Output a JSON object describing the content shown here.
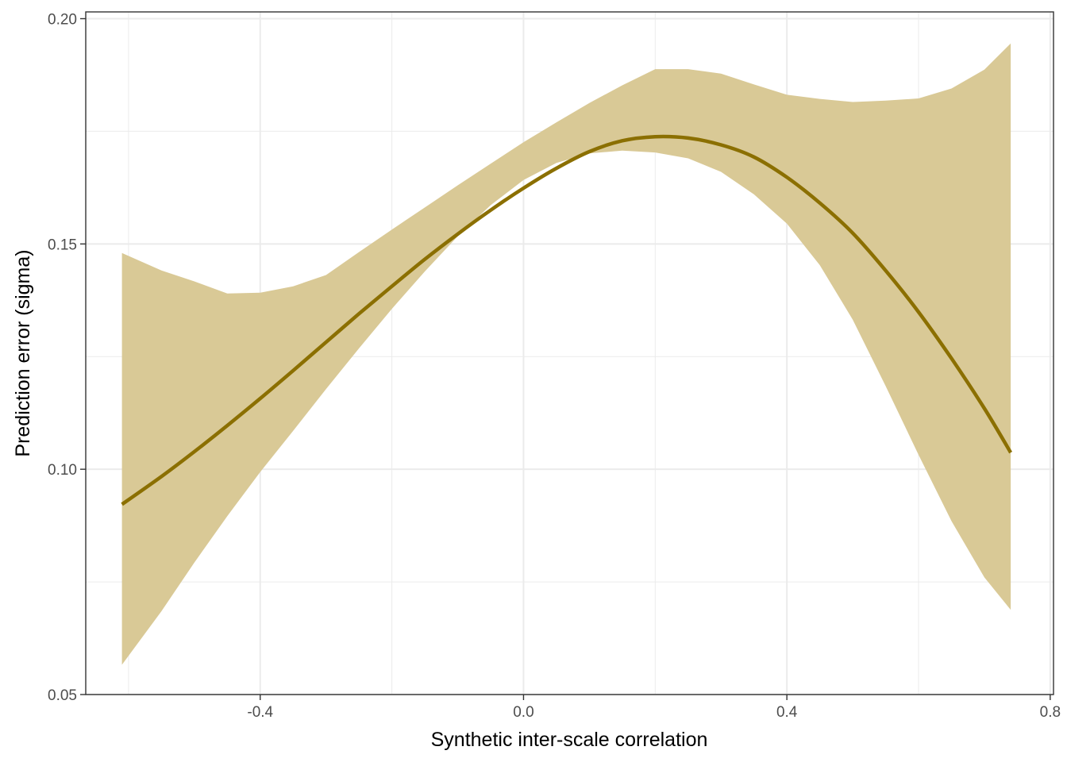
{
  "chart_data": {
    "type": "line",
    "title": "",
    "xlabel": "Synthetic inter-scale correlation",
    "ylabel": "Prediction error (sigma)",
    "xlim": [
      -0.665,
      0.805
    ],
    "ylim": [
      0.05,
      0.2015
    ],
    "x_ticks": [
      -0.4,
      0.0,
      0.4,
      0.8
    ],
    "x_tick_labels": [
      "-0.4",
      "0.0",
      "0.4",
      "0.8"
    ],
    "y_ticks": [
      0.05,
      0.1,
      0.15,
      0.2
    ],
    "y_tick_labels": [
      "0.05",
      "0.10",
      "0.15",
      "0.20"
    ],
    "x_minor_gridlines": [
      -0.6,
      -0.2,
      0.2,
      0.6
    ],
    "y_minor_gridlines": [
      0.075,
      0.125,
      0.175
    ],
    "grid": true,
    "legend": "none",
    "colors": {
      "line": "#8B6F00",
      "ribbon": "#D9C996",
      "grid": "#EBEBEB",
      "panel_border": "#333333"
    },
    "series": [
      {
        "x": [
          -0.61,
          -0.55,
          -0.5,
          -0.45,
          -0.4,
          -0.35,
          -0.3,
          -0.25,
          -0.2,
          -0.15,
          -0.1,
          -0.05,
          0.0,
          0.05,
          0.1,
          0.15,
          0.2,
          0.25,
          0.3,
          0.35,
          0.4,
          0.45,
          0.5,
          0.55,
          0.6,
          0.65,
          0.7,
          0.74
        ],
        "y": [
          0.0922,
          0.0984,
          0.1039,
          0.1097,
          0.1157,
          0.1219,
          0.1282,
          0.1345,
          0.1406,
          0.1466,
          0.1522,
          0.1575,
          0.1624,
          0.1668,
          0.1705,
          0.1729,
          0.1738,
          0.1735,
          0.172,
          0.1693,
          0.1648,
          0.1591,
          0.1524,
          0.1441,
          0.1349,
          0.1246,
          0.1135,
          0.1037
        ],
        "lower": [
          0.0566,
          0.0685,
          0.0793,
          0.0896,
          0.0994,
          0.1085,
          0.1178,
          0.1268,
          0.1356,
          0.1439,
          0.1517,
          0.1586,
          0.1642,
          0.168,
          0.1701,
          0.1707,
          0.1703,
          0.169,
          0.166,
          0.161,
          0.1545,
          0.1453,
          0.1332,
          0.1185,
          0.1032,
          0.0885,
          0.076,
          0.0688
        ],
        "upper": [
          0.148,
          0.1441,
          0.1417,
          0.139,
          0.1392,
          0.1406,
          0.1431,
          0.1482,
          0.1532,
          0.1581,
          0.163,
          0.1678,
          0.1726,
          0.177,
          0.1813,
          0.1852,
          0.1888,
          0.1888,
          0.1878,
          0.1854,
          0.1831,
          0.1822,
          0.1815,
          0.1818,
          0.1823,
          0.1845,
          0.1887,
          0.1945
        ]
      }
    ]
  }
}
